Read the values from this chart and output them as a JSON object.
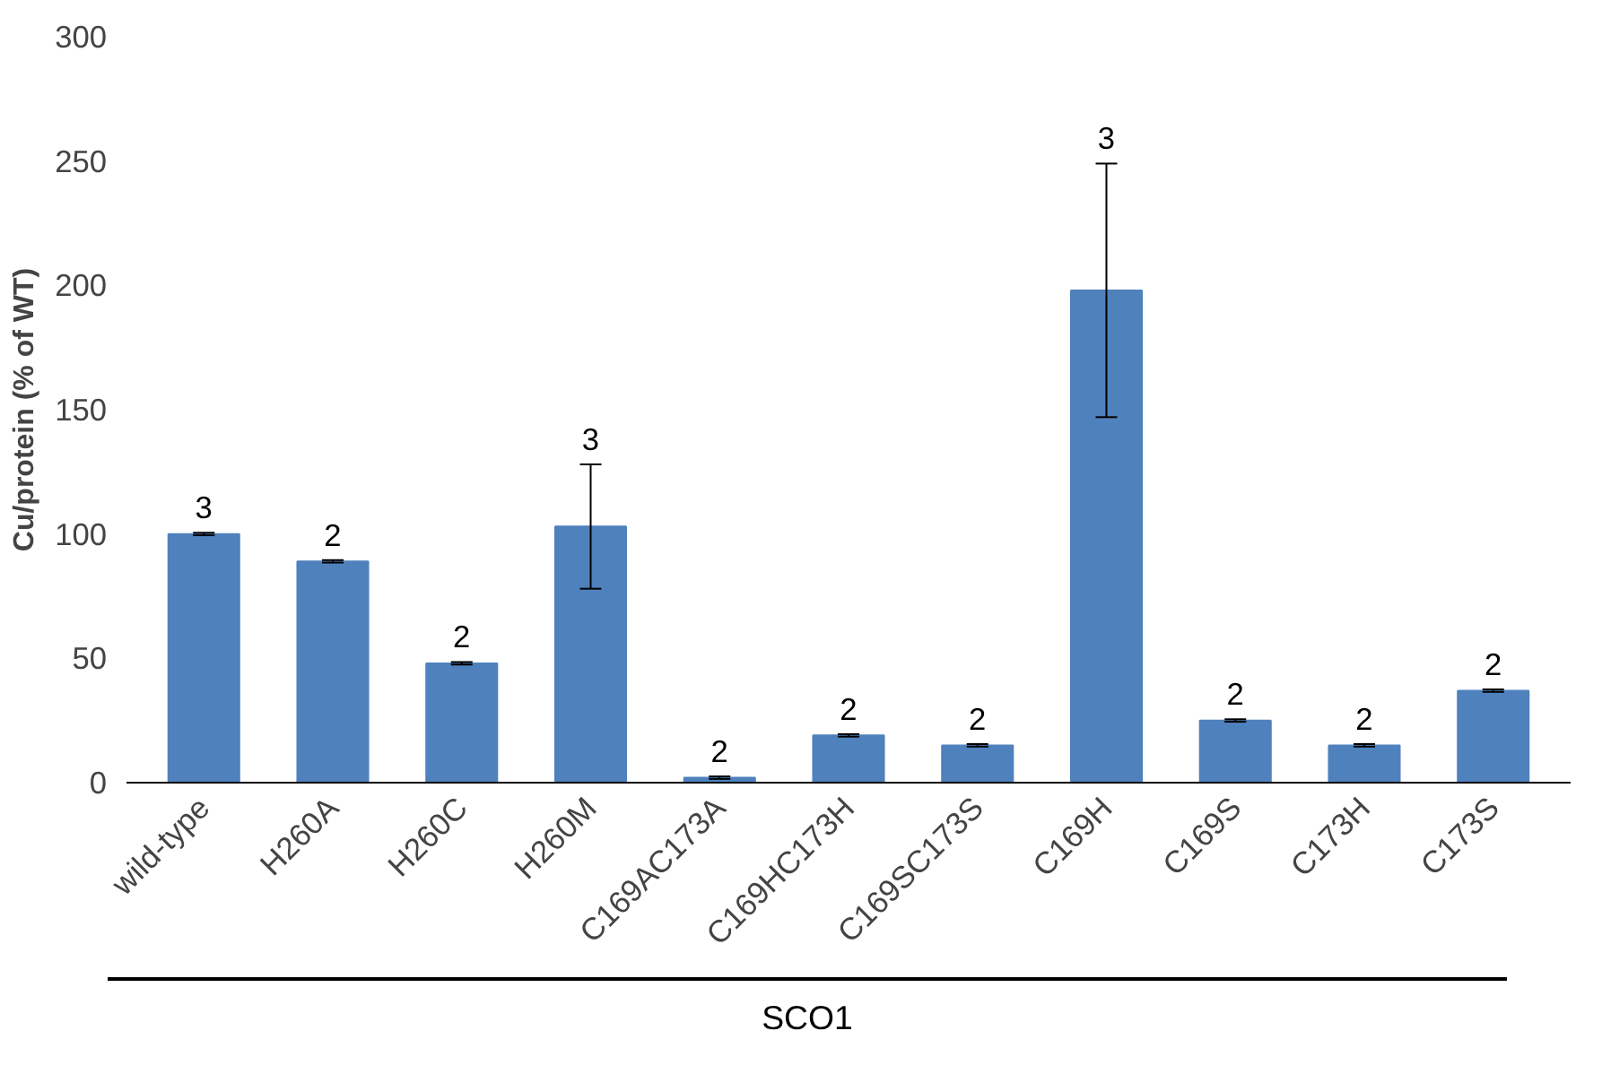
{
  "chart_data": {
    "type": "bar",
    "ylabel": "Cu/protein (% of WT)",
    "xlabel": "SCO1",
    "categories": [
      "wild-type",
      "H260A",
      "H260C",
      "H260M",
      "C169AC173A",
      "C169HC173H",
      "C169SC173S",
      "C169H",
      "C169S",
      "C173H",
      "C173S"
    ],
    "values": [
      100,
      89,
      48,
      103,
      2,
      19,
      15,
      198,
      25,
      15,
      37
    ],
    "errors": [
      0.5,
      0.5,
      0.5,
      25,
      0.5,
      0.5,
      0.5,
      51,
      0.5,
      0.5,
      0.5
    ],
    "color": "#4f81bd",
    "ylim": [
      0,
      300
    ],
    "yticks": [
      0,
      50,
      100,
      150,
      200,
      250,
      300
    ],
    "grid": false,
    "annotations": [
      "3",
      "2",
      "2",
      "3",
      "2",
      "2",
      "2",
      "3",
      "2",
      "2",
      "2"
    ]
  }
}
